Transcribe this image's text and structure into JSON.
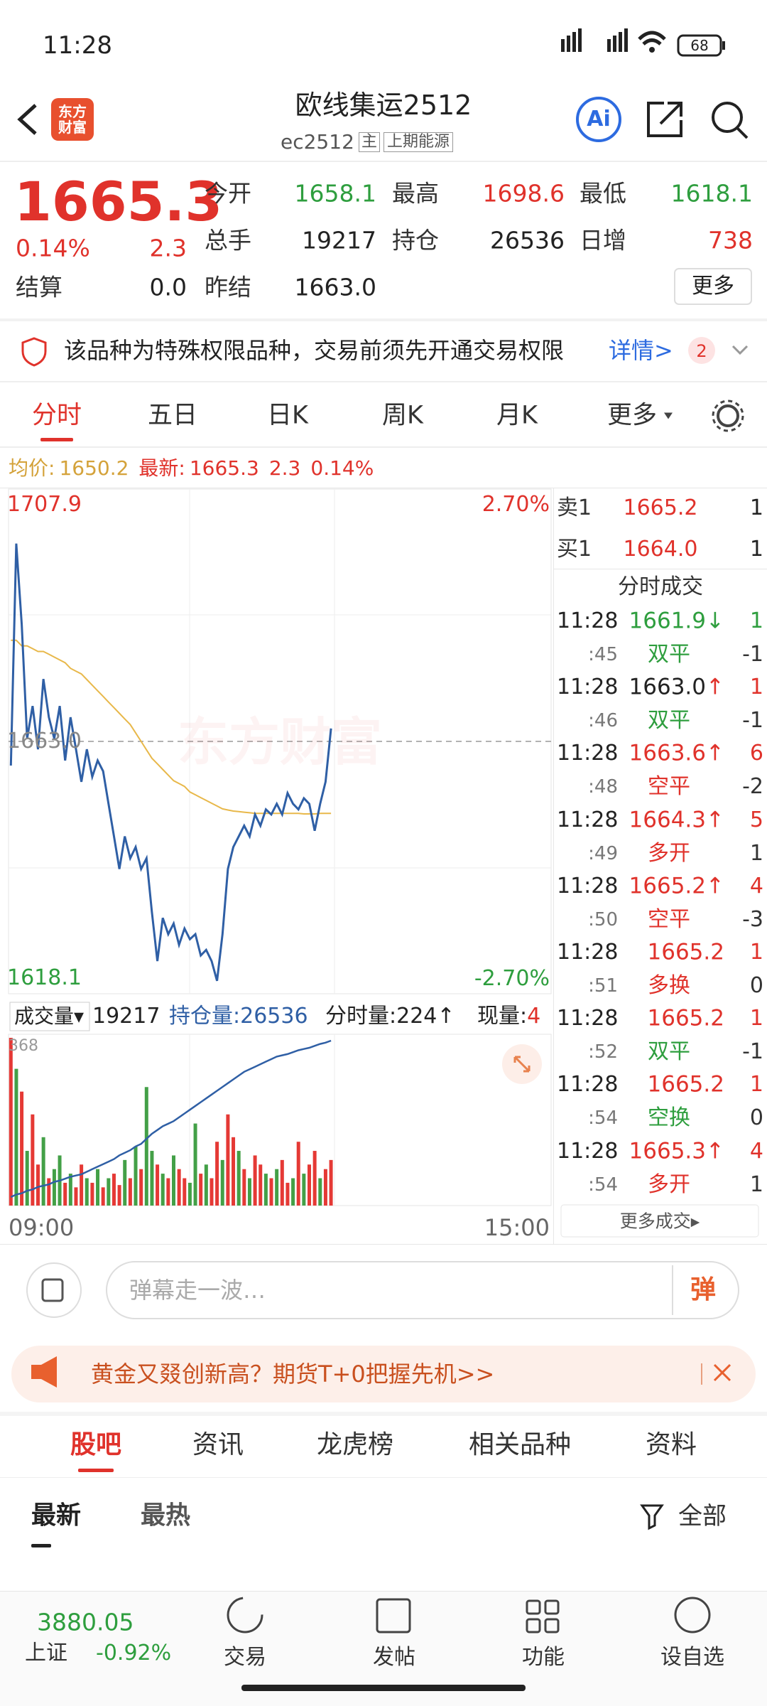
{
  "status": {
    "time": "11:28",
    "battery": "68"
  },
  "header": {
    "title": "欧线集运2512",
    "code": "ec2512",
    "tag": "主",
    "exchange": "上期能源",
    "logo": "东方财富",
    "ai": "Ai"
  },
  "quote": {
    "price": "1665.3",
    "change_pct": "0.14%",
    "change": "2.3",
    "fields": [
      {
        "label": "今开",
        "value": "1658.1"
      },
      {
        "label": "最高",
        "value": "1698.6"
      },
      {
        "label": "最低",
        "value": "1618.1"
      },
      {
        "label": "总手",
        "value": "19217"
      },
      {
        "label": "持仓",
        "value": "26536"
      },
      {
        "label": "日增",
        "value": "738"
      },
      {
        "label": "结算",
        "value": "0.0"
      },
      {
        "label": "昨结",
        "value": "1663.0"
      }
    ],
    "more": "更多"
  },
  "notice": {
    "text": "该品种为特殊权限品种，交易前须先开通交易权限",
    "details": "详情>",
    "count": "2"
  },
  "tabs": [
    "分时",
    "五日",
    "日K",
    "周K",
    "月K",
    "更多"
  ],
  "info": {
    "avg_label": "均价:",
    "avg": "1650.2",
    "last_label": "最新:",
    "last": "1665.3",
    "change": "2.3",
    "change_pct": "0.14%"
  },
  "chart_data": [
    {
      "type": "line",
      "ylim": [
        1618.1,
        1707.9
      ],
      "yticks": [
        1707.9,
        {
          "value": 1663,
          "label": "1663.0"
        },
        1618.1
      ],
      "pct_labels": [
        "2.70%",
        "-2.70%"
      ],
      "xlabels": [
        "09:00",
        "15:00"
      ],
      "watermark": "东方财富",
      "series": [
        {
          "color": "#2f5fa5",
          "values": [
            1658.7,
            1698.2,
            1683.8,
            1663.5,
            1669.3,
            1661.6,
            1674.1,
            1667.3,
            1663.5,
            1669.3,
            1659.6,
            1667.3,
            1661.6,
            1655.8,
            1661.6,
            1656.7,
            1659.6,
            1657.7,
            1651.9,
            1646.1,
            1640.3,
            1646.1,
            1642.2,
            1644.2,
            1640.3,
            1642.2,
            1632.6,
            1623.9,
            1631.6,
            1628.7,
            1630.6,
            1626.8,
            1629.7,
            1627.8,
            1628.7,
            1624.9,
            1625.9,
            1623.9,
            1620.4,
            1628.7,
            1640.3,
            1644.2,
            1646.1,
            1648.0,
            1646.1,
            1650.0,
            1648.0,
            1650.9,
            1650.0,
            1651.9,
            1650.0,
            1653.8,
            1651.9,
            1650.9,
            1652.9,
            1651.9,
            1647.1,
            1651.9,
            1655.8,
            1665.3
          ]
        },
        {
          "color": "#e8b84a",
          "values": [
            1681,
            1681,
            1680,
            1680,
            1679.5,
            1679,
            1679,
            1678.5,
            1678,
            1677.5,
            1677,
            1676,
            1675.5,
            1675,
            1674,
            1673,
            1672,
            1671,
            1670,
            1669,
            1668,
            1667,
            1666,
            1664.5,
            1663,
            1661.5,
            1660,
            1659,
            1658,
            1657,
            1656,
            1655.5,
            1655,
            1654,
            1653.5,
            1653,
            1652.5,
            1652,
            1651.5,
            1651,
            1650.8,
            1650.6,
            1650.5,
            1650.4,
            1650.3,
            1650.2,
            1650.2,
            1650.2,
            1650.2,
            1650.2,
            1650.2,
            1650.2,
            1650.2,
            1650.2,
            1650.1,
            1650.1,
            1650.1,
            1650.2,
            1650.2,
            1650.2
          ]
        }
      ]
    },
    {
      "type": "bar",
      "ylim": [
        0,
        368
      ],
      "yticks": [
        368
      ],
      "values": [
        368,
        300,
        250,
        120,
        200,
        90,
        150,
        60,
        80,
        110,
        50,
        70,
        40,
        90,
        60,
        50,
        80,
        40,
        60,
        70,
        45,
        100,
        60,
        130,
        80,
        260,
        120,
        90,
        70,
        60,
        110,
        80,
        60,
        50,
        180,
        70,
        90,
        60,
        140,
        100,
        200,
        150,
        120,
        80,
        60,
        110,
        90,
        70,
        60,
        80,
        100,
        50,
        60,
        140,
        70,
        90,
        120,
        60,
        80,
        100
      ],
      "colors": [
        "#e53935",
        "#43a047",
        "#e53935",
        "#43a047",
        "#e53935",
        "#e53935",
        "#43a047",
        "#e53935",
        "#43a047",
        "#43a047",
        "#e53935",
        "#43a047",
        "#e53935",
        "#e53935",
        "#43a047",
        "#e53935",
        "#43a047",
        "#e53935",
        "#43a047",
        "#e53935",
        "#e53935",
        "#43a047",
        "#e53935",
        "#43a047",
        "#e53935",
        "#43a047",
        "#43a047",
        "#e53935",
        "#43a047",
        "#e53935",
        "#43a047",
        "#e53935",
        "#e53935",
        "#43a047",
        "#43a047",
        "#e53935",
        "#43a047",
        "#e53935",
        "#e53935",
        "#43a047",
        "#e53935",
        "#e53935",
        "#43a047",
        "#e53935",
        "#43a047",
        "#e53935",
        "#e53935",
        "#43a047",
        "#e53935",
        "#43a047",
        "#e53935",
        "#e53935",
        "#43a047",
        "#e53935",
        "#43a047",
        "#e53935",
        "#e53935",
        "#43a047",
        "#e53935",
        "#e53935"
      ],
      "line": {
        "color": "#2f5fa5",
        "values": [
          25300,
          25320,
          25330,
          25350,
          25360,
          25380,
          25390,
          25400,
          25420,
          25430,
          25445,
          25460,
          25470,
          25480,
          25500,
          25520,
          25540,
          25560,
          25580,
          25600,
          25630,
          25650,
          25670,
          25700,
          25720,
          25760,
          25800,
          25830,
          25860,
          25880,
          25900,
          25930,
          25960,
          25990,
          26020,
          26050,
          26080,
          26110,
          26140,
          26170,
          26200,
          26230,
          26260,
          26290,
          26310,
          26330,
          26350,
          26370,
          26390,
          26410,
          26420,
          26430,
          26445,
          26460,
          26470,
          26480,
          26495,
          26510,
          26520,
          26536
        ]
      }
    }
  ],
  "volume_header": {
    "selector": "成交量▾",
    "volume": "19217",
    "oi_label": "持仓量:",
    "oi": "26536",
    "minute_label": "分时量:",
    "minute": "224↑",
    "now_label": "现量:",
    "now": "4"
  },
  "book": [
    {
      "label": "卖1",
      "price": "1665.2",
      "vol": "1"
    },
    {
      "label": "买1",
      "price": "1664.0",
      "vol": "1"
    }
  ],
  "trades_title": "分时成交",
  "trades": [
    {
      "time": "11:28",
      "price": "1661.9",
      "arrow": "↓",
      "color": "#2e9e3e",
      "vol": "1",
      "vol_color": "#2e9e3e",
      "sec": ":45",
      "kind": "双平",
      "kind_color": "#2e9e3e",
      "delta": "-1"
    },
    {
      "time": "11:28",
      "price": "1663.0",
      "arrow": "↑",
      "color": "#222",
      "vol": "1",
      "vol_color": "#e0322b",
      "sec": ":46",
      "kind": "双平",
      "kind_color": "#2e9e3e",
      "delta": "-1"
    },
    {
      "time": "11:28",
      "price": "1663.6",
      "arrow": "↑",
      "color": "#e0322b",
      "vol": "6",
      "vol_color": "#e0322b",
      "sec": ":48",
      "kind": "空平",
      "kind_color": "#e0322b",
      "delta": "-2"
    },
    {
      "time": "11:28",
      "price": "1664.3",
      "arrow": "↑",
      "color": "#e0322b",
      "vol": "5",
      "vol_color": "#e0322b",
      "sec": ":49",
      "kind": "多开",
      "kind_color": "#e0322b",
      "delta": "1"
    },
    {
      "time": "11:28",
      "price": "1665.2",
      "arrow": "↑",
      "color": "#e0322b",
      "vol": "4",
      "vol_color": "#e0322b",
      "sec": ":50",
      "kind": "空平",
      "kind_color": "#e0322b",
      "delta": "-3"
    },
    {
      "time": "11:28",
      "price": "1665.2",
      "arrow": "",
      "color": "#e0322b",
      "vol": "1",
      "vol_color": "#e0322b",
      "sec": ":51",
      "kind": "多换",
      "kind_color": "#e0322b",
      "delta": "0"
    },
    {
      "time": "11:28",
      "price": "1665.2",
      "arrow": "",
      "color": "#e0322b",
      "vol": "1",
      "vol_color": "#e0322b",
      "sec": ":52",
      "kind": "双平",
      "kind_color": "#2e9e3e",
      "delta": "-1"
    },
    {
      "time": "11:28",
      "price": "1665.2",
      "arrow": "",
      "color": "#e0322b",
      "vol": "1",
      "vol_color": "#e0322b",
      "sec": ":54",
      "kind": "空换",
      "kind_color": "#2e9e3e",
      "delta": "0"
    },
    {
      "time": "11:28",
      "price": "1665.3",
      "arrow": "↑",
      "color": "#e0322b",
      "vol": "4",
      "vol_color": "#e0322b",
      "sec": ":54",
      "kind": "多开",
      "kind_color": "#e0322b",
      "delta": "1"
    }
  ],
  "more_trades": "更多成交▸",
  "comment": {
    "placeholder": "弹幕走一波…",
    "button": "弹"
  },
  "ad": {
    "text": "黄金又叕创新高？期货T+0把握先机>>"
  },
  "section_tabs": [
    "股吧",
    "资讯",
    "龙虎榜",
    "相关品种",
    "资料"
  ],
  "sub_tabs": [
    "最新",
    "最热"
  ],
  "filter": "全部",
  "footer": {
    "index_value": "3880.05",
    "index_name": "上证",
    "index_change": "-0.92%",
    "nav": [
      "交易",
      "发帖",
      "功能",
      "设自选"
    ]
  }
}
